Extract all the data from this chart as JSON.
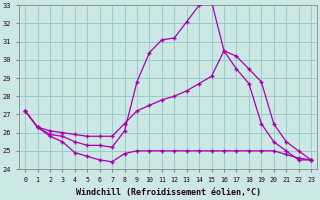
{
  "xlabel": "Windchill (Refroidissement éolien,°C)",
  "xlim": [
    -0.5,
    23.5
  ],
  "ylim": [
    24,
    33
  ],
  "yticks": [
    24,
    25,
    26,
    27,
    28,
    29,
    30,
    31,
    32,
    33
  ],
  "xticks": [
    0,
    1,
    2,
    3,
    4,
    5,
    6,
    7,
    8,
    9,
    10,
    11,
    12,
    13,
    14,
    15,
    16,
    17,
    18,
    19,
    20,
    21,
    22,
    23
  ],
  "bg_color": "#cce8e5",
  "line_color": "#aa00aa",
  "grid_color": "#99cccc",
  "line1_x": [
    0,
    1,
    2,
    3,
    4,
    5,
    6,
    7,
    8,
    9,
    10,
    11,
    12,
    13,
    14,
    15,
    16,
    17,
    18,
    19,
    20,
    21,
    22,
    23
  ],
  "line1_y": [
    27.2,
    26.3,
    25.9,
    25.8,
    25.5,
    25.3,
    25.3,
    25.2,
    26.1,
    28.8,
    30.4,
    31.1,
    31.2,
    32.1,
    33.0,
    33.2,
    30.5,
    29.5,
    28.7,
    26.5,
    25.5,
    25.0,
    24.5,
    24.5
  ],
  "line2_x": [
    0,
    1,
    2,
    3,
    4,
    5,
    6,
    7,
    8,
    9,
    10,
    11,
    12,
    13,
    14,
    15,
    16,
    17,
    18,
    19,
    20,
    21,
    22,
    23
  ],
  "line2_y": [
    27.2,
    26.3,
    26.1,
    26.0,
    25.9,
    25.8,
    25.8,
    25.8,
    26.5,
    27.2,
    27.5,
    27.8,
    28.0,
    28.3,
    28.7,
    29.1,
    30.5,
    30.2,
    29.5,
    28.8,
    26.5,
    25.5,
    25.0,
    24.5
  ],
  "line3_x": [
    0,
    1,
    2,
    3,
    4,
    5,
    6,
    7,
    8,
    9,
    10,
    11,
    12,
    13,
    14,
    15,
    16,
    17,
    18,
    19,
    20,
    21,
    22,
    23
  ],
  "line3_y": [
    27.2,
    26.3,
    25.8,
    25.5,
    24.9,
    24.7,
    24.5,
    24.4,
    24.85,
    25.0,
    25.0,
    25.0,
    25.0,
    25.0,
    25.0,
    25.0,
    25.0,
    25.0,
    25.0,
    25.0,
    25.0,
    24.8,
    24.6,
    24.5
  ]
}
